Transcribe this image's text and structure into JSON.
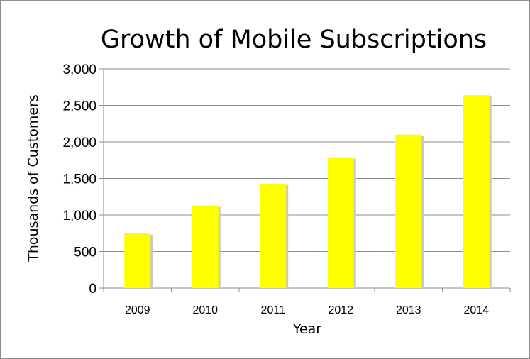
{
  "chart_data": {
    "type": "bar",
    "title": "Growth of Mobile Subscriptions",
    "xlabel": "Year",
    "ylabel": "Thousands of Customers",
    "categories": [
      "2009",
      "2010",
      "2011",
      "2012",
      "2013",
      "2014"
    ],
    "values": [
      750,
      1130,
      1430,
      1790,
      2100,
      2640
    ],
    "ylim": [
      0,
      3000
    ],
    "yticks": [
      "0",
      "500",
      "1,000",
      "1,500",
      "2,000",
      "2,500",
      "3,000"
    ],
    "grid": true,
    "legend": "none",
    "bar_color": "#ffff00",
    "bar_shadow_color": "#c9c9c9",
    "grid_color": "#8c8c8c"
  }
}
